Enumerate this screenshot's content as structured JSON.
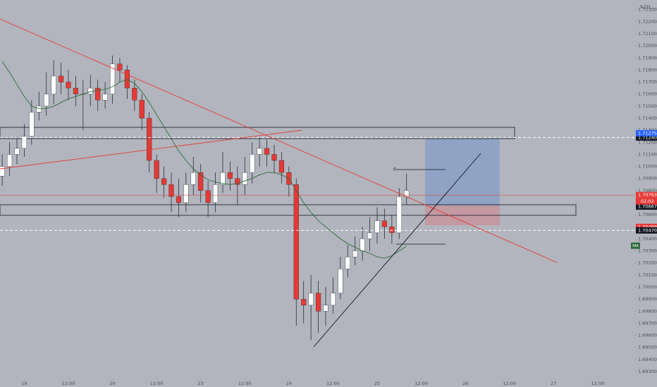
{
  "chart_data": {
    "type": "candlestick",
    "symbol_currency": "NZD",
    "open": [
      1.7092,
      1.71,
      1.711,
      1.7115,
      1.7125,
      1.7145,
      1.715,
      1.716,
      1.7175,
      1.717,
      1.7165,
      1.716,
      1.716,
      1.7165,
      1.7155,
      1.716,
      1.7185,
      1.718,
      1.7165,
      1.7155,
      1.714,
      1.7105,
      1.709,
      1.7085,
      1.7075,
      1.707,
      1.7085,
      1.7095,
      1.708,
      1.707,
      1.7085,
      1.7095,
      1.709,
      1.7085,
      1.7095,
      1.711,
      1.7115,
      1.711,
      1.7105,
      1.7095,
      1.7085,
      1.699,
      1.6985,
      1.6995,
      1.698,
      1.6985,
      1.6995,
      1.7015,
      1.7025,
      1.703,
      1.704,
      1.7045,
      1.7055,
      1.705,
      1.7045,
      1.7075
    ],
    "high": [
      1.711,
      1.712,
      1.7125,
      1.7135,
      1.7155,
      1.7162,
      1.7178,
      1.7188,
      1.7186,
      1.718,
      1.7175,
      1.7172,
      1.7176,
      1.7172,
      1.717,
      1.7192,
      1.719,
      1.7184,
      1.7172,
      1.716,
      1.7145,
      1.711,
      1.71,
      1.7095,
      1.709,
      1.7095,
      1.7108,
      1.7102,
      1.7088,
      1.7095,
      1.7112,
      1.7104,
      1.71,
      1.7108,
      1.712,
      1.7124,
      1.7122,
      1.7118,
      1.7112,
      1.71,
      1.709,
      1.7005,
      1.701,
      1.7005,
      1.7,
      1.7008,
      1.7025,
      1.7035,
      1.7042,
      1.705,
      1.7058,
      1.7066,
      1.7065,
      1.706,
      1.7082,
      1.7094
    ],
    "low": [
      1.7084,
      1.7092,
      1.7102,
      1.7108,
      1.7118,
      1.7138,
      1.7142,
      1.7152,
      1.716,
      1.7155,
      1.715,
      1.713,
      1.715,
      1.7146,
      1.7148,
      1.7152,
      1.717,
      1.7156,
      1.7146,
      1.713,
      1.7095,
      1.7078,
      1.7074,
      1.7062,
      1.7058,
      1.7062,
      1.7076,
      1.707,
      1.7058,
      1.7062,
      1.7078,
      1.708,
      1.7068,
      1.7076,
      1.7086,
      1.71,
      1.71,
      1.7094,
      1.7086,
      1.7075,
      1.6968,
      1.697,
      1.6956,
      1.6962,
      1.6968,
      1.6978,
      1.699,
      1.7008,
      1.7018,
      1.7022,
      1.703,
      1.7036,
      1.704,
      1.7036,
      1.704,
      1.7068
    ],
    "close": [
      1.71,
      1.711,
      1.7115,
      1.7125,
      1.7145,
      1.715,
      1.716,
      1.7175,
      1.717,
      1.7165,
      1.716,
      1.716,
      1.7165,
      1.7155,
      1.716,
      1.7185,
      1.718,
      1.7165,
      1.7155,
      1.714,
      1.7105,
      1.709,
      1.7085,
      1.7075,
      1.707,
      1.7085,
      1.7095,
      1.708,
      1.707,
      1.7085,
      1.7095,
      1.709,
      1.7085,
      1.7095,
      1.711,
      1.7115,
      1.711,
      1.7105,
      1.7095,
      1.7085,
      1.699,
      1.6985,
      1.6995,
      1.698,
      1.6985,
      1.6995,
      1.7015,
      1.7025,
      1.703,
      1.704,
      1.7045,
      1.7055,
      1.705,
      1.7045,
      1.7075,
      1.708
    ],
    "up_color": "#ffffff",
    "down_color": "#e53935",
    "ma": {
      "name": "MA",
      "color": "#2e6b3a",
      "values": [
        1.7187,
        1.7178,
        1.7168,
        1.7158,
        1.715,
        1.7148,
        1.7148,
        1.715,
        1.7153,
        1.7156,
        1.7158,
        1.716,
        1.7162,
        1.7163,
        1.7164,
        1.7166,
        1.717,
        1.7172,
        1.7169,
        1.7162,
        1.7153,
        1.7143,
        1.7133,
        1.7123,
        1.7113,
        1.7105,
        1.7098,
        1.7093,
        1.7089,
        1.7087,
        1.7086,
        1.7085,
        1.7086,
        1.7088,
        1.709,
        1.7093,
        1.7095,
        1.7095,
        1.7093,
        1.709,
        1.708,
        1.707,
        1.7062,
        1.7055,
        1.705,
        1.7045,
        1.704,
        1.7036,
        1.7033,
        1.703,
        1.7028,
        1.7025,
        1.7024,
        1.7026,
        1.703,
        1.7034
      ]
    },
    "xlim": [
      -0.3,
      86
    ],
    "xticks": [
      {
        "value": 3,
        "label": "19"
      },
      {
        "value": 9,
        "label": "12:00"
      },
      {
        "value": 15,
        "label": "20"
      },
      {
        "value": 21,
        "label": "12:00"
      },
      {
        "value": 27,
        "label": "23"
      },
      {
        "value": 33,
        "label": "12:00"
      },
      {
        "value": 39,
        "label": "24"
      },
      {
        "value": 45,
        "label": "12:00"
      },
      {
        "value": 51,
        "label": "25"
      },
      {
        "value": 57,
        "label": "12:00"
      },
      {
        "value": 63,
        "label": "26"
      },
      {
        "value": 69,
        "label": "12:00"
      },
      {
        "value": 75,
        "label": "27"
      },
      {
        "value": 81,
        "label": "12:00"
      }
    ],
    "ylim": [
      1.6923,
      1.7238
    ],
    "yticks": [
      {
        "value": 1.693,
        "label": "1.69300"
      },
      {
        "value": 1.694,
        "label": "1.69400"
      },
      {
        "value": 1.695,
        "label": "1.69500"
      },
      {
        "value": 1.696,
        "label": "1.69600"
      },
      {
        "value": 1.697,
        "label": "1.69700"
      },
      {
        "value": 1.698,
        "label": "1.69800"
      },
      {
        "value": 1.699,
        "label": "1.69900"
      },
      {
        "value": 1.7,
        "label": "1.70000"
      },
      {
        "value": 1.701,
        "label": "1.70100"
      },
      {
        "value": 1.702,
        "label": "1.70200"
      },
      {
        "value": 1.703,
        "label": "1.70300"
      },
      {
        "value": 1.704,
        "label": "1.70400"
      },
      {
        "value": 1.705,
        "label": "1.70500"
      },
      {
        "value": 1.706,
        "label": "1.70600"
      },
      {
        "value": 1.707,
        "label": "1.70700"
      },
      {
        "value": 1.708,
        "label": "1.70800"
      },
      {
        "value": 1.709,
        "label": "1.70900"
      },
      {
        "value": 1.71,
        "label": "1.71000"
      },
      {
        "value": 1.711,
        "label": "1.71100"
      },
      {
        "value": 1.712,
        "label": "1.71200"
      },
      {
        "value": 1.713,
        "label": "1.71300"
      },
      {
        "value": 1.714,
        "label": "1.71400"
      },
      {
        "value": 1.715,
        "label": "1.71500"
      },
      {
        "value": 1.716,
        "label": "1.71600"
      },
      {
        "value": 1.717,
        "label": "1.71700"
      },
      {
        "value": 1.718,
        "label": "1.71800"
      },
      {
        "value": 1.719,
        "label": "1.71900"
      },
      {
        "value": 1.72,
        "label": "1.72000"
      },
      {
        "value": 1.721,
        "label": "1.72100"
      },
      {
        "value": 1.722,
        "label": "1.72200"
      },
      {
        "value": 1.723,
        "label": "1.72300"
      }
    ],
    "price_tags": [
      {
        "value": 1.7124,
        "label": "1.71240",
        "color": "#131722",
        "line": "dashed"
      },
      {
        "value": 1.71275,
        "label": "1.71275",
        "color": "#2962ff"
      },
      {
        "value": 1.70763,
        "label": "1.70763",
        "color": "#e53935",
        "line": "solid"
      },
      {
        "value": 1.70667,
        "label": "1.70667",
        "color": "#131722"
      },
      {
        "value": 1.70499,
        "label": "1.70499",
        "color": "#e53935"
      },
      {
        "value": 1.7047,
        "label": "1.70470",
        "color": "#131722",
        "line": "dashed"
      }
    ],
    "countdown": "02:02",
    "position_label": "0"
  }
}
